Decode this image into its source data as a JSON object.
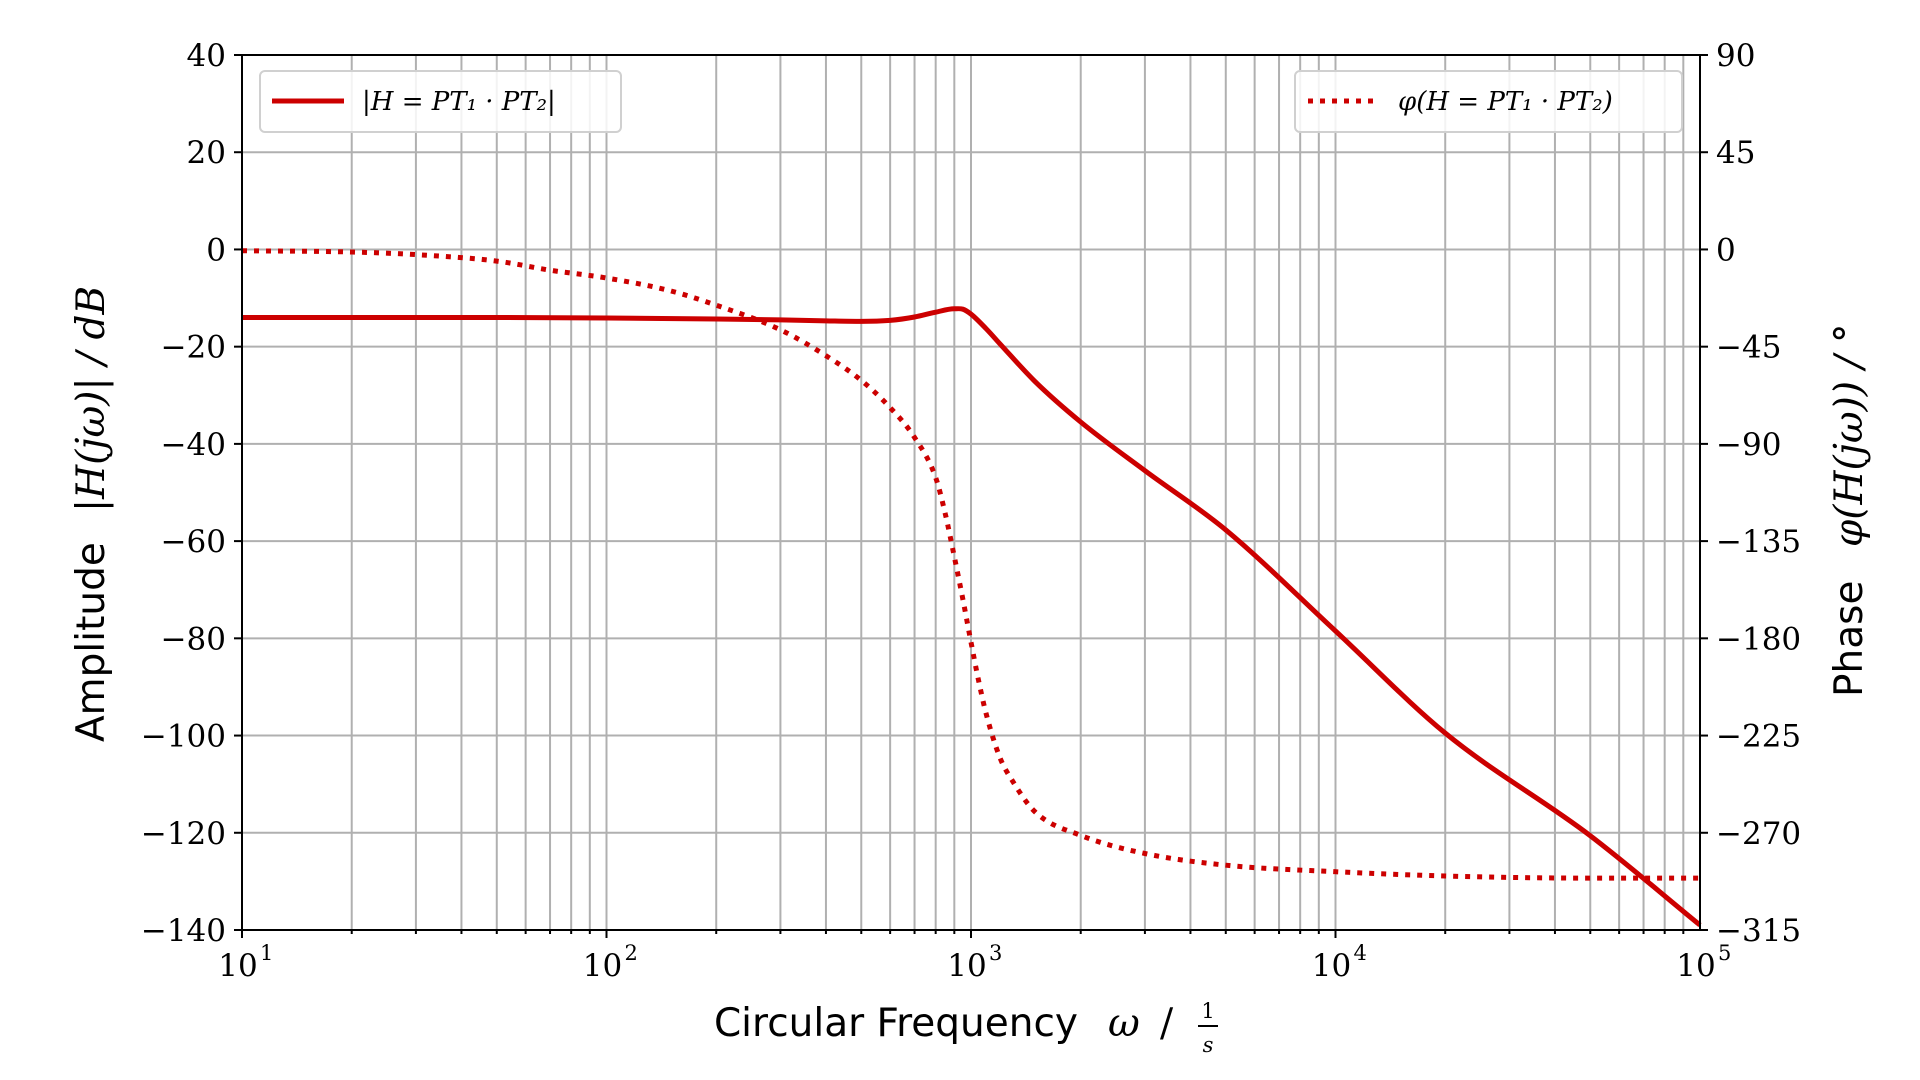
{
  "chart_data": {
    "type": "line",
    "xlabel": {
      "text": "Circular Frequency",
      "math": "ω / 1/s",
      "symbol": "ω",
      "separator": "/",
      "unit_num": "1",
      "unit_den": "s"
    },
    "ylabel_left": {
      "text": "Amplitude",
      "math": "|H(jω)| / dB"
    },
    "ylabel_right": {
      "text": "Phase",
      "math": "φ(H(jω)) / °"
    },
    "x_scale": "log",
    "xlim": [
      10,
      100000
    ],
    "ylim_left": [
      -140,
      40
    ],
    "ylim_right": [
      -315,
      90
    ],
    "x_ticks": [
      {
        "value": 10,
        "base": "10",
        "exp": "1"
      },
      {
        "value": 100,
        "base": "10",
        "exp": "2"
      },
      {
        "value": 1000,
        "base": "10",
        "exp": "3"
      },
      {
        "value": 10000,
        "base": "10",
        "exp": "4"
      },
      {
        "value": 100000,
        "base": "10",
        "exp": "5"
      }
    ],
    "y_ticks_left": [
      "40",
      "20",
      "0",
      "−20",
      "−40",
      "−60",
      "−80",
      "−100",
      "−120",
      "−140"
    ],
    "y_ticks_left_values": [
      40,
      20,
      0,
      -20,
      -40,
      -60,
      -80,
      -100,
      -120,
      -140
    ],
    "y_ticks_right": [
      "90",
      "45",
      "0",
      "−45",
      "−90",
      "−135",
      "−180",
      "−225",
      "−270",
      "−315"
    ],
    "y_ticks_right_values": [
      90,
      45,
      0,
      -45,
      -90,
      -135,
      -180,
      -225,
      -270,
      -315
    ],
    "grid": true,
    "series": [
      {
        "name": "|H = PT₁ · PT₂|",
        "axis": "left",
        "style": "solid",
        "color": "#cc0000",
        "x": [
          10,
          20,
          50,
          100,
          200,
          300,
          400,
          500,
          600,
          700,
          800,
          900,
          950,
          1000,
          1100,
          1200,
          1500,
          2000,
          3000,
          5000,
          10000,
          20000,
          50000,
          100000
        ],
        "y": [
          -14,
          -14,
          -14,
          -14.1,
          -14.3,
          -14.5,
          -14.7,
          -14.8,
          -14.6,
          -13.9,
          -12.9,
          -12.2,
          -12.3,
          -13.3,
          -16.3,
          -19.4,
          -27.2,
          -35.5,
          -45.5,
          -57.7,
          -78.5,
          -99.5,
          -120.6,
          -139
        ]
      },
      {
        "name": "φ(H = PT₁ · PT₂)",
        "axis": "right",
        "style": "dotted",
        "color": "#cc0000",
        "x": [
          10,
          20,
          30,
          50,
          70,
          100,
          150,
          200,
          300,
          400,
          500,
          600,
          700,
          800,
          850,
          900,
          950,
          1000,
          1050,
          1100,
          1200,
          1300,
          1500,
          2000,
          3000,
          5000,
          10000,
          20000,
          50000,
          100000
        ],
        "y": [
          -0.6,
          -1.2,
          -2.4,
          -5.4,
          -9.6,
          -13.2,
          -19.2,
          -25.8,
          -37.2,
          -49.2,
          -60.6,
          -73.2,
          -87.0,
          -105.6,
          -122.4,
          -142.2,
          -162.0,
          -181.8,
          -199.8,
          -214.8,
          -235.2,
          -246.0,
          -260.4,
          -271.2,
          -279.6,
          -285.0,
          -288.0,
          -290.0,
          -291.0,
          -291.0
        ]
      }
    ],
    "legend": [
      {
        "position": "top-left",
        "label": "|H = PT₁ · PT₂|",
        "style": "solid"
      },
      {
        "position": "top-right",
        "label": "φ(H = PT₁ · PT₂)",
        "style": "dotted"
      }
    ]
  }
}
